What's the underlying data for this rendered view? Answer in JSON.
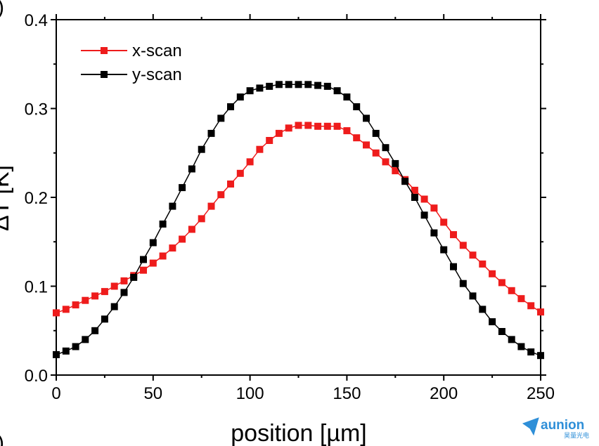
{
  "chart_data": {
    "type": "scatter",
    "title": "",
    "xlabel": "position [µm]",
    "ylabel": "ΔT [K]",
    "xlim": [
      0,
      250
    ],
    "ylim": [
      0.0,
      0.4
    ],
    "x_ticks": [
      "0",
      "50",
      "100",
      "150",
      "200",
      "250"
    ],
    "y_ticks": [
      "0.0",
      "0.1",
      "0.2",
      "0.3",
      "0.4"
    ],
    "grid": false,
    "legend_position": "top-left",
    "series": [
      {
        "name": "x-scan",
        "color": "#ee1c1c",
        "marker": "square",
        "x": [
          0,
          5,
          10,
          15,
          20,
          25,
          30,
          35,
          40,
          45,
          50,
          55,
          60,
          65,
          70,
          75,
          80,
          85,
          90,
          95,
          100,
          105,
          110,
          115,
          120,
          125,
          130,
          135,
          140,
          145,
          150,
          155,
          160,
          165,
          170,
          175,
          180,
          185,
          190,
          195,
          200,
          205,
          210,
          215,
          220,
          225,
          230,
          235,
          240,
          245,
          250
        ],
        "y": [
          0.07,
          0.074,
          0.079,
          0.084,
          0.089,
          0.094,
          0.1,
          0.106,
          0.112,
          0.118,
          0.126,
          0.134,
          0.143,
          0.153,
          0.164,
          0.176,
          0.19,
          0.203,
          0.215,
          0.227,
          0.24,
          0.254,
          0.264,
          0.272,
          0.278,
          0.281,
          0.281,
          0.28,
          0.28,
          0.28,
          0.275,
          0.267,
          0.259,
          0.25,
          0.24,
          0.23,
          0.22,
          0.208,
          0.198,
          0.188,
          0.172,
          0.158,
          0.146,
          0.135,
          0.125,
          0.114,
          0.104,
          0.095,
          0.086,
          0.078,
          0.071
        ]
      },
      {
        "name": "y-scan",
        "color": "#000000",
        "marker": "square",
        "x": [
          0,
          5,
          10,
          15,
          20,
          25,
          30,
          35,
          40,
          45,
          50,
          55,
          60,
          65,
          70,
          75,
          80,
          85,
          90,
          95,
          100,
          105,
          110,
          115,
          120,
          125,
          130,
          135,
          140,
          145,
          150,
          155,
          160,
          165,
          170,
          175,
          180,
          185,
          190,
          195,
          200,
          205,
          210,
          215,
          220,
          225,
          230,
          235,
          240,
          245,
          250
        ],
        "y": [
          0.023,
          0.027,
          0.032,
          0.04,
          0.05,
          0.063,
          0.077,
          0.093,
          0.11,
          0.13,
          0.149,
          0.17,
          0.19,
          0.211,
          0.232,
          0.254,
          0.272,
          0.289,
          0.302,
          0.313,
          0.32,
          0.323,
          0.325,
          0.327,
          0.327,
          0.327,
          0.327,
          0.326,
          0.325,
          0.32,
          0.313,
          0.302,
          0.289,
          0.272,
          0.256,
          0.238,
          0.218,
          0.2,
          0.18,
          0.16,
          0.141,
          0.122,
          0.103,
          0.089,
          0.074,
          0.06,
          0.049,
          0.04,
          0.032,
          0.026,
          0.022
        ]
      }
    ]
  },
  "fragments": {
    "ylabel_visible": "ΔT [K]",
    "top_left_fragment": ")",
    "bottom_left_fragment": ")"
  },
  "logo": {
    "name": "aunion",
    "subtitle": "昊量光电",
    "color": "#2f8fd8",
    "icon": "paper-plane-icon"
  }
}
